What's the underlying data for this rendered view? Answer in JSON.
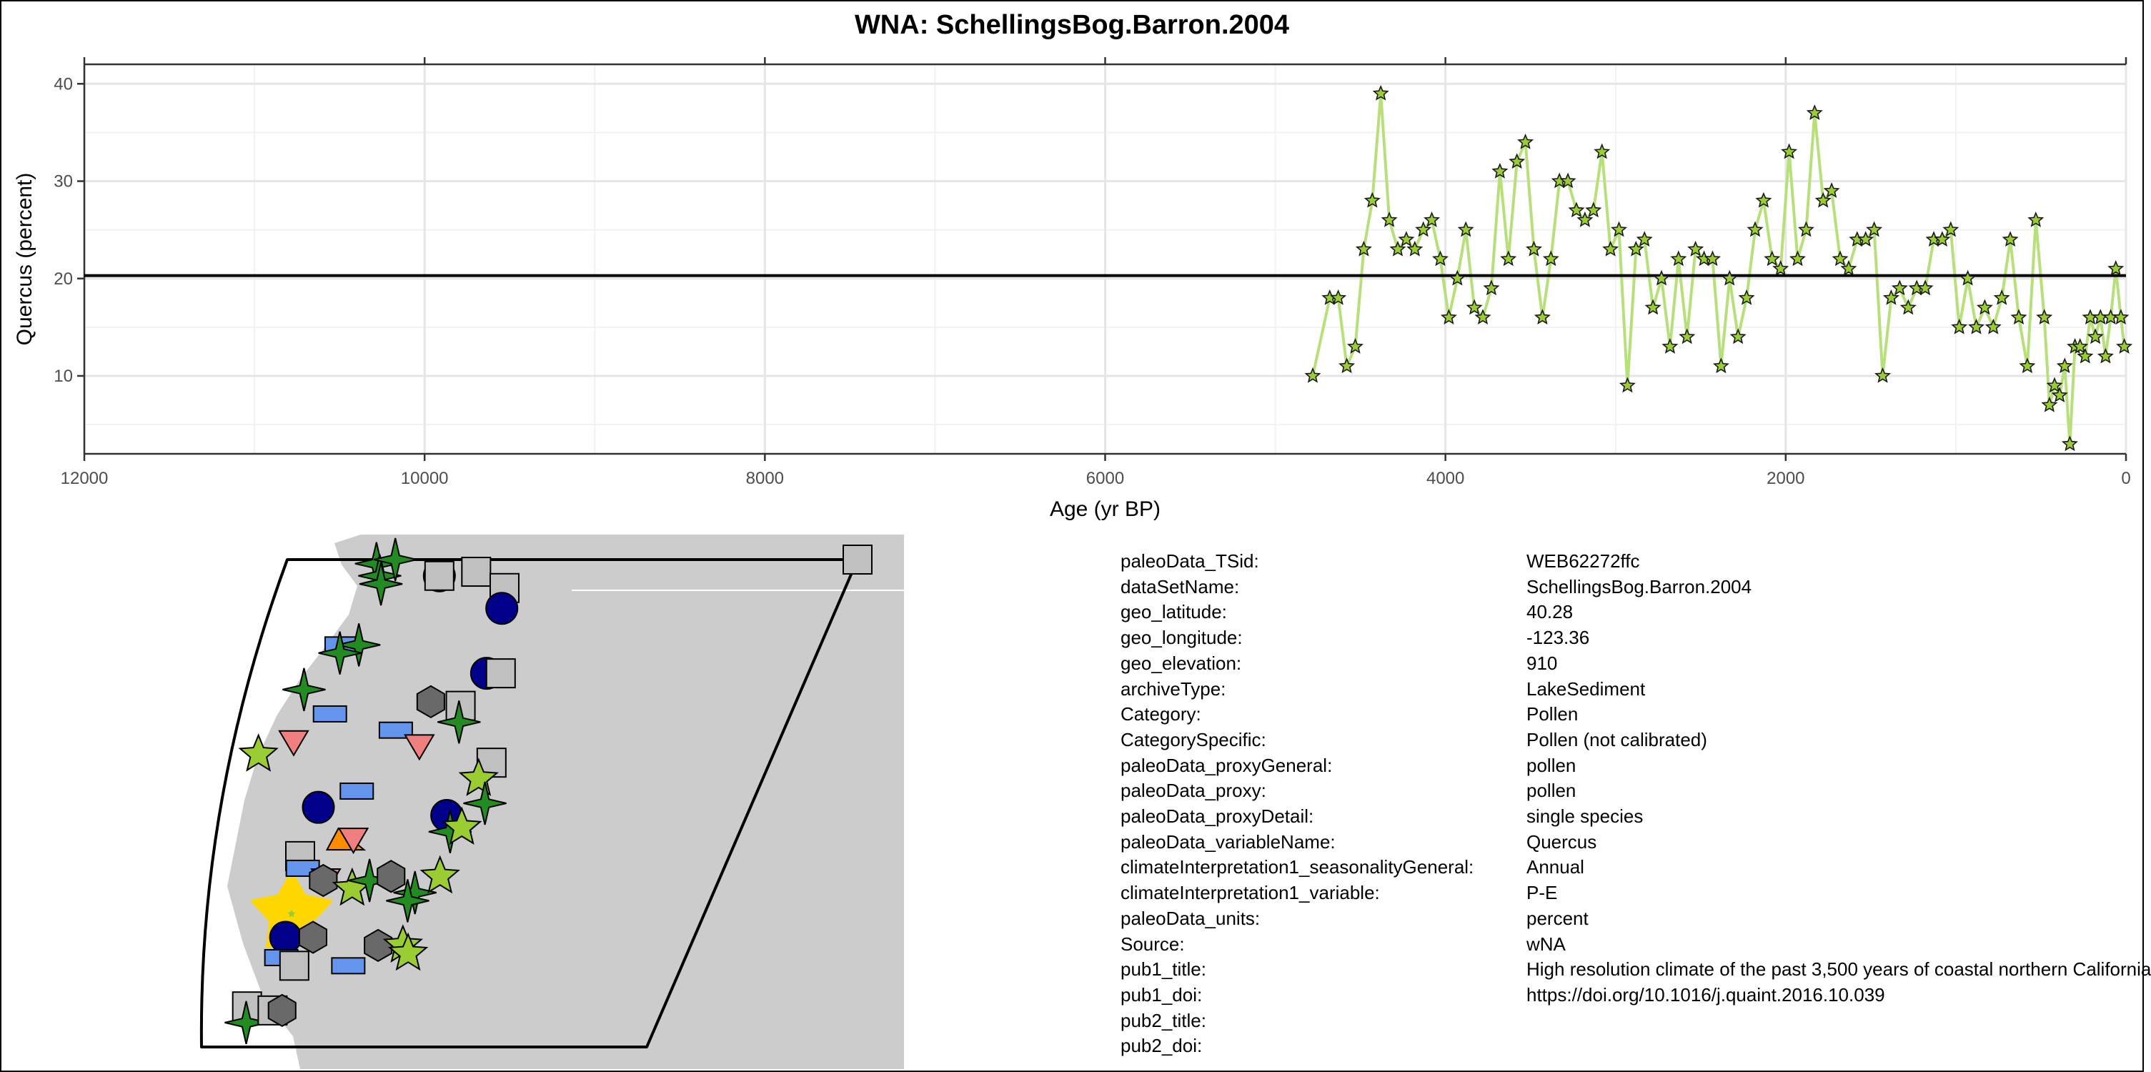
{
  "title": "WNA: SchellingsBog.Barron.2004",
  "colors": {
    "series_line": "#b8e07a",
    "series_fill": "#9acd32",
    "mean_line": "#000000",
    "map_land": "#cccccc"
  },
  "chart_data": {
    "type": "line",
    "title": "WNA: SchellingsBog.Barron.2004",
    "xlabel": "Age (yr BP)",
    "ylabel": "Quercus (percent)",
    "xlim": [
      12000,
      0
    ],
    "ylim": [
      2,
      42
    ],
    "x_reversed": true,
    "x_ticks": [
      12000,
      10000,
      8000,
      6000,
      4000,
      2000,
      0
    ],
    "y_ticks": [
      10,
      20,
      30,
      40
    ],
    "grid": true,
    "mean_line_y": 20.3,
    "marker": "star",
    "series": [
      {
        "x": [
          4780,
          4680,
          4630,
          4580,
          4530,
          4480,
          4430,
          4380,
          4330,
          4280,
          4230,
          4180,
          4130,
          4080,
          4030,
          3980,
          3930,
          3880,
          3830,
          3780,
          3730,
          3680,
          3630,
          3580,
          3530,
          3480,
          3430,
          3380,
          3330,
          3280,
          3230,
          3180,
          3130,
          3080,
          3030,
          2980,
          2930,
          2880,
          2830,
          2780,
          2730,
          2680,
          2630,
          2580,
          2530,
          2480,
          2430,
          2380,
          2330,
          2280,
          2230,
          2180,
          2130,
          2080,
          2030,
          1980,
          1930,
          1880,
          1830,
          1780,
          1730,
          1680,
          1630,
          1580,
          1530,
          1480,
          1430,
          1380,
          1330,
          1280,
          1230,
          1180,
          1130,
          1080,
          1030,
          980,
          930,
          880,
          830,
          780,
          730,
          680,
          630,
          580,
          530,
          480,
          450,
          420,
          390,
          360,
          330,
          300,
          270,
          240,
          210,
          180,
          150,
          120,
          90,
          60,
          30,
          10
        ],
        "y": [
          10,
          18,
          18,
          11,
          13,
          23,
          28,
          39,
          26,
          23,
          24,
          23,
          25,
          26,
          22,
          16,
          20,
          25,
          17,
          16,
          19,
          31,
          22,
          32,
          34,
          23,
          16,
          22,
          30,
          30,
          27,
          26,
          27,
          33,
          23,
          25,
          9,
          23,
          24,
          17,
          20,
          13,
          22,
          14,
          23,
          22,
          22,
          11,
          20,
          14,
          18,
          25,
          28,
          22,
          21,
          33,
          22,
          25,
          37,
          28,
          29,
          22,
          21,
          24,
          24,
          25,
          10,
          18,
          19,
          17,
          19,
          19,
          24,
          24,
          25,
          15,
          20,
          15,
          17,
          15,
          18,
          24,
          16,
          11,
          26,
          16,
          7,
          9,
          8,
          11,
          3,
          13,
          13,
          12,
          16,
          14,
          16,
          12,
          16,
          21,
          16,
          13
        ]
      }
    ]
  },
  "map": {
    "markers": [
      {
        "shape": "star4",
        "color": "#228b22",
        "lon": -123.0,
        "lat": 48.9
      },
      {
        "shape": "star4",
        "color": "#228b22",
        "lon": -122.8,
        "lat": 48.6
      },
      {
        "shape": "star4",
        "color": "#228b22",
        "lon": -122.4,
        "lat": 49.0
      },
      {
        "shape": "star4",
        "color": "#228b22",
        "lon": -122.7,
        "lat": 48.4
      },
      {
        "shape": "circle",
        "color": "#00008b",
        "lon": -120.8,
        "lat": 48.6
      },
      {
        "shape": "square",
        "color": "#c0c0c0",
        "lon": -120.8,
        "lat": 48.6
      },
      {
        "shape": "square",
        "color": "#c0c0c0",
        "lon": -119.6,
        "lat": 48.7
      },
      {
        "shape": "square",
        "color": "#c0c0c0",
        "lon": -118.5,
        "lat": 48.3
      },
      {
        "shape": "circle",
        "color": "#00008b",
        "lon": -118.4,
        "lat": 47.8
      },
      {
        "shape": "square",
        "color": "#c0c0c0",
        "lon": -107.0,
        "lat": 49.0
      },
      {
        "shape": "rect",
        "color": "#6495ed",
        "lon": -123.6,
        "lat": 46.9
      },
      {
        "shape": "star4",
        "color": "#228b22",
        "lon": -123.0,
        "lat": 46.9
      },
      {
        "shape": "star4",
        "color": "#228b22",
        "lon": -123.6,
        "lat": 46.7
      },
      {
        "shape": "circle",
        "color": "#00008b",
        "lon": -118.3,
        "lat": 46.2
      },
      {
        "shape": "square",
        "color": "#c0c0c0",
        "lon": -117.8,
        "lat": 46.2
      },
      {
        "shape": "star4",
        "color": "#228b22",
        "lon": -124.6,
        "lat": 45.8
      },
      {
        "shape": "rect",
        "color": "#6495ed",
        "lon": -123.5,
        "lat": 45.2
      },
      {
        "shape": "hexagon",
        "color": "#696969",
        "lon": -120.0,
        "lat": 45.5
      },
      {
        "shape": "square",
        "color": "#c0c0c0",
        "lon": -118.9,
        "lat": 45.4
      },
      {
        "shape": "star4",
        "color": "#228b22",
        "lon": -118.8,
        "lat": 45.0
      },
      {
        "shape": "rect",
        "color": "#6495ed",
        "lon": -121.0,
        "lat": 44.8
      },
      {
        "shape": "triangle-down",
        "color": "#f08080",
        "lon": -124.6,
        "lat": 44.5
      },
      {
        "shape": "triangle-down",
        "color": "#f08080",
        "lon": -120.0,
        "lat": 44.4
      },
      {
        "shape": "star",
        "color": "#9acd32",
        "lon": -125.8,
        "lat": 44.2
      },
      {
        "shape": "square",
        "color": "#c0c0c0",
        "lon": -117.2,
        "lat": 44.0
      },
      {
        "shape": "star",
        "color": "#9acd32",
        "lon": -117.5,
        "lat": 43.6
      },
      {
        "shape": "star4",
        "color": "#228b22",
        "lon": -117.0,
        "lat": 43.0
      },
      {
        "shape": "star",
        "color": "#ffd700",
        "lon": -123.36,
        "lat": 40.28,
        "highlight": true
      },
      {
        "shape": "rect",
        "color": "#6495ed",
        "lon": -121.9,
        "lat": 43.3
      },
      {
        "shape": "circle",
        "color": "#00008b",
        "lon": -123.2,
        "lat": 42.9
      },
      {
        "shape": "circle",
        "color": "#00008b",
        "lon": -118.3,
        "lat": 42.7
      },
      {
        "shape": "star4",
        "color": "#228b22",
        "lon": -118.0,
        "lat": 42.3
      },
      {
        "shape": "star",
        "color": "#9acd32",
        "lon": -117.6,
        "lat": 42.4
      },
      {
        "shape": "triangle",
        "color": "#ff8c00",
        "lon": -121.9,
        "lat": 42.1
      },
      {
        "shape": "triangle-down",
        "color": "#f08080",
        "lon": -121.6,
        "lat": 42.1
      },
      {
        "shape": "square",
        "color": "#c0c0c0",
        "lon": -123.5,
        "lat": 41.7
      },
      {
        "shape": "rect",
        "color": "#6495ed",
        "lon": -123.3,
        "lat": 41.4
      },
      {
        "shape": "triangle-down",
        "color": "#f08080",
        "lon": -122.3,
        "lat": 41.1
      },
      {
        "shape": "hexagon",
        "color": "#696969",
        "lon": -122.4,
        "lat": 41.1
      },
      {
        "shape": "star",
        "color": "#9acd32",
        "lon": -121.2,
        "lat": 40.9
      },
      {
        "shape": "star4",
        "color": "#228b22",
        "lon": -120.6,
        "lat": 41.1
      },
      {
        "shape": "hexagon",
        "color": "#696969",
        "lon": -119.8,
        "lat": 41.2
      },
      {
        "shape": "star4",
        "color": "#228b22",
        "lon": -118.7,
        "lat": 40.8
      },
      {
        "shape": "star4",
        "color": "#228b22",
        "lon": -118.9,
        "lat": 40.6
      },
      {
        "shape": "star",
        "color": "#9acd32",
        "lon": -117.9,
        "lat": 41.2
      },
      {
        "shape": "circle",
        "color": "#00008b",
        "lon": -123.4,
        "lat": 39.7
      },
      {
        "shape": "hexagon",
        "color": "#696969",
        "lon": -122.3,
        "lat": 39.7
      },
      {
        "shape": "rect",
        "color": "#6495ed",
        "lon": -123.4,
        "lat": 39.2
      },
      {
        "shape": "square",
        "color": "#c0c0c0",
        "lon": -122.8,
        "lat": 39.0
      },
      {
        "shape": "hexagon",
        "color": "#696969",
        "lon": -119.6,
        "lat": 39.5
      },
      {
        "shape": "star",
        "color": "#9acd32",
        "lon": -118.6,
        "lat": 39.5
      },
      {
        "shape": "star",
        "color": "#9acd32",
        "lon": -118.3,
        "lat": 39.3
      },
      {
        "shape": "rect",
        "color": "#6495ed",
        "lon": -120.6,
        "lat": 39.0
      },
      {
        "shape": "square",
        "color": "#c0c0c0",
        "lon": -124.4,
        "lat": 38.0
      },
      {
        "shape": "star4",
        "color": "#228b22",
        "lon": -124.3,
        "lat": 37.6
      },
      {
        "shape": "square",
        "color": "#c0c0c0",
        "lon": -123.3,
        "lat": 37.9
      },
      {
        "shape": "hexagon",
        "color": "#696969",
        "lon": -122.9,
        "lat": 37.9
      }
    ]
  },
  "metadata": [
    {
      "key": "paleoData_TSid:",
      "value": "WEB62272ffc"
    },
    {
      "key": "dataSetName:",
      "value": "SchellingsBog.Barron.2004"
    },
    {
      "key": "geo_latitude:",
      "value": "40.28"
    },
    {
      "key": "geo_longitude:",
      "value": "-123.36"
    },
    {
      "key": "geo_elevation:",
      "value": "910"
    },
    {
      "key": "archiveType:",
      "value": "LakeSediment"
    },
    {
      "key": "Category:",
      "value": "Pollen"
    },
    {
      "key": "CategorySpecific:",
      "value": "Pollen (not calibrated)"
    },
    {
      "key": "paleoData_proxyGeneral:",
      "value": "pollen"
    },
    {
      "key": "paleoData_proxy:",
      "value": "pollen"
    },
    {
      "key": "paleoData_proxyDetail:",
      "value": "single species"
    },
    {
      "key": "paleoData_variableName:",
      "value": "Quercus"
    },
    {
      "key": "climateInterpretation1_seasonalityGeneral:",
      "value": "Annual"
    },
    {
      "key": "climateInterpretation1_variable:",
      "value": "P-E"
    },
    {
      "key": "paleoData_units:",
      "value": "percent"
    },
    {
      "key": "Source:",
      "value": "wNA"
    },
    {
      "key": "pub1_title:",
      "value": "High resolution climate of the past 3,500 years of coastal northern California"
    },
    {
      "key": "pub1_doi:",
      "value": "https://doi.org/10.1016/j.quaint.2016.10.039"
    },
    {
      "key": "pub2_title:",
      "value": ""
    },
    {
      "key": "pub2_doi:",
      "value": ""
    }
  ]
}
